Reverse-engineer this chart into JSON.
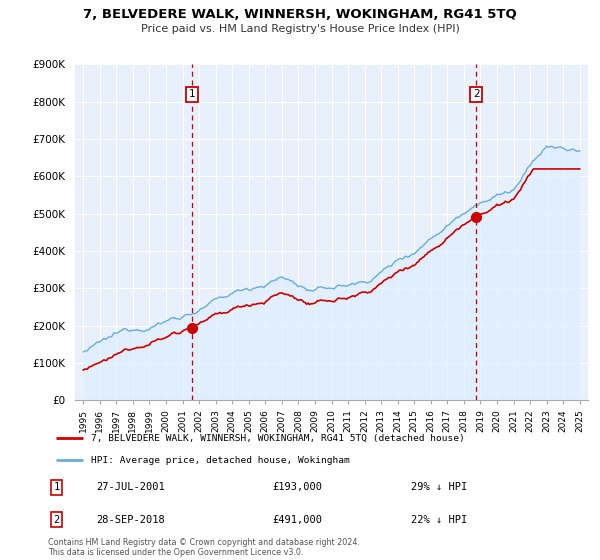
{
  "title": "7, BELVEDERE WALK, WINNERSH, WOKINGHAM, RG41 5TQ",
  "subtitle": "Price paid vs. HM Land Registry's House Price Index (HPI)",
  "ylim": [
    0,
    900000
  ],
  "yticks": [
    0,
    100000,
    200000,
    300000,
    400000,
    500000,
    600000,
    700000,
    800000,
    900000
  ],
  "ytick_labels": [
    "£0",
    "£100K",
    "£200K",
    "£300K",
    "£400K",
    "£500K",
    "£600K",
    "£700K",
    "£800K",
    "£900K"
  ],
  "hpi_color": "#6baed6",
  "hpi_fill_color": "#ddeeff",
  "price_color": "#cc0000",
  "annotation1_date": "27-JUL-2001",
  "annotation1_price": 193000,
  "annotation1_label": "29% ↓ HPI",
  "annotation2_date": "28-SEP-2018",
  "annotation2_price": 491000,
  "annotation2_label": "22% ↓ HPI",
  "legend_label1": "7, BELVEDERE WALK, WINNERSH, WOKINGHAM, RG41 5TQ (detached house)",
  "legend_label2": "HPI: Average price, detached house, Wokingham",
  "footnote": "Contains HM Land Registry data © Crown copyright and database right 2024.\nThis data is licensed under the Open Government Licence v3.0.",
  "background_color": "#ffffff",
  "plot_bg_color": "#e8f0fb",
  "grid_color": "#ffffff",
  "sale1_year": 2001.574,
  "sale2_year": 2018.747,
  "sale1_price": 193000,
  "sale2_price": 491000
}
